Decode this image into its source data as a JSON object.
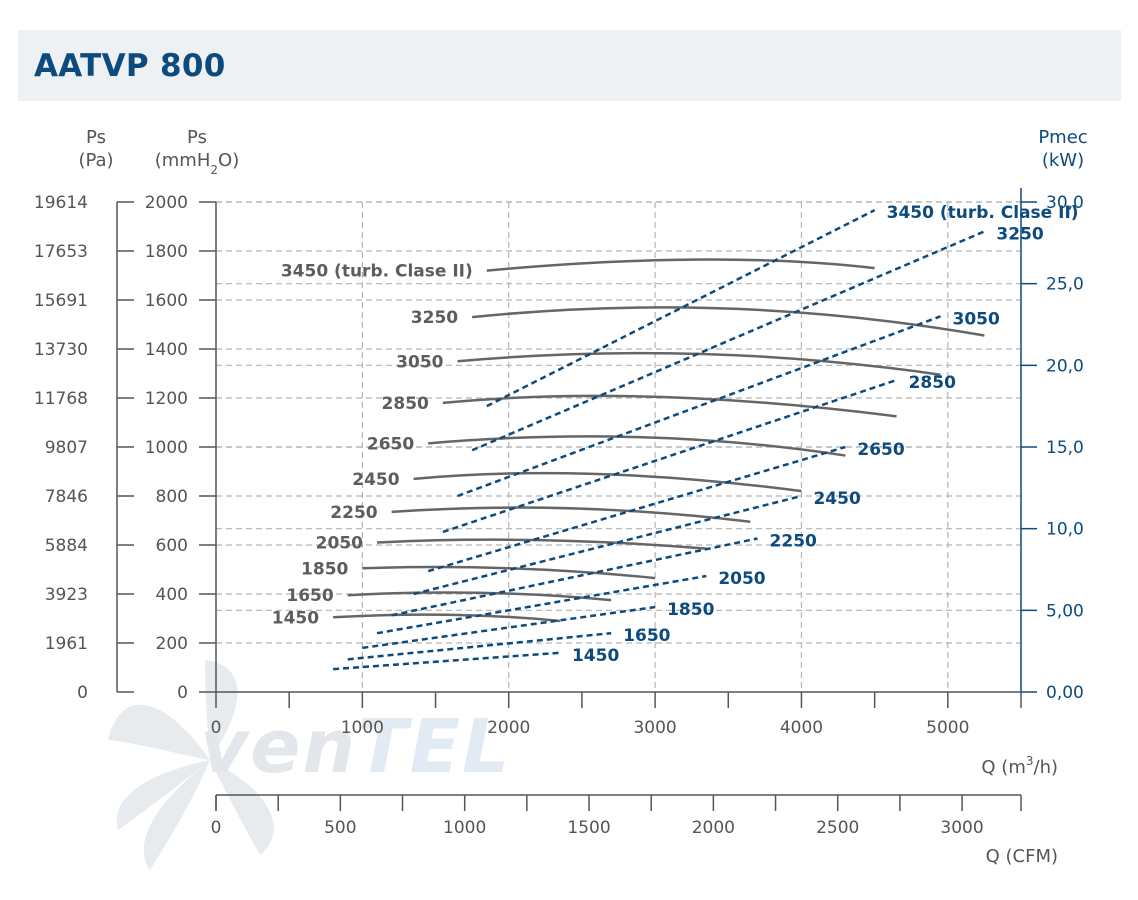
{
  "header": {
    "title": "AATVP 800"
  },
  "watermark": {
    "logo_text": "venTEL"
  },
  "colors": {
    "pressure_curve": "#666666",
    "power_curve": "#0d4a7d",
    "grid": "#b4b4b4",
    "header_bg": "#eef1f4"
  },
  "chart_data": {
    "type": "line",
    "title": "AATVP 800",
    "xlabel": "Q (m3/h)",
    "x_secondary_label": "Q (CFM)",
    "xlim": [
      0,
      5500
    ],
    "x_ticks": [
      "0",
      "1000",
      "2000",
      "3000",
      "4000",
      "5000"
    ],
    "x_secondary_lim": [
      0,
      3237
    ],
    "x_secondary_ticks": [
      "0",
      "500",
      "1000",
      "1500",
      "2000",
      "2500",
      "3000"
    ],
    "ylabel_pa": {
      "name": "Ps",
      "unit": "(Pa)"
    },
    "ylabel_mmH2O": {
      "name": "Ps",
      "unit_pre": "(mmH",
      "unit_sub": "2",
      "unit_post": "O)"
    },
    "ylabel_right": {
      "name": "Pmec",
      "unit": "(kW)"
    },
    "ylim": [
      0,
      2000
    ],
    "y_ticks_pa": [
      "0",
      "1961",
      "3923",
      "5884",
      "7846",
      "9807",
      "11768",
      "13730",
      "15691",
      "17653",
      "19614"
    ],
    "y_ticks_mmH2O": [
      "0",
      "200",
      "400",
      "600",
      "800",
      "1000",
      "1200",
      "1400",
      "1600",
      "1800",
      "2000"
    ],
    "y2lim": [
      0,
      30
    ],
    "y_ticks_right": [
      "0,00",
      "5,00",
      "10,0",
      "15,0",
      "20,0",
      "25,0",
      "30,0"
    ],
    "grid": true,
    "pressure_curves": [
      {
        "name": "1450",
        "label": "1450",
        "x": [
          800,
          1600,
          2350
        ],
        "y": [
          305,
          315,
          290
        ]
      },
      {
        "name": "1650",
        "label": "1650",
        "x": [
          900,
          1800,
          2700
        ],
        "y": [
          395,
          405,
          375
        ]
      },
      {
        "name": "1850",
        "label": "1850",
        "x": [
          1000,
          2000,
          3000
        ],
        "y": [
          505,
          505,
          465
        ]
      },
      {
        "name": "2050",
        "label": "2050",
        "x": [
          1100,
          2200,
          3350
        ],
        "y": [
          610,
          620,
          585
        ]
      },
      {
        "name": "2250",
        "label": "2250",
        "x": [
          1200,
          2400,
          3650
        ],
        "y": [
          735,
          750,
          695
        ]
      },
      {
        "name": "2450",
        "label": "2450",
        "x": [
          1350,
          2600,
          4000
        ],
        "y": [
          870,
          890,
          820
        ]
      },
      {
        "name": "2650",
        "label": "2650",
        "x": [
          1450,
          2900,
          4300
        ],
        "y": [
          1015,
          1040,
          965
        ]
      },
      {
        "name": "2850",
        "label": "2850",
        "x": [
          1550,
          3000,
          4650
        ],
        "y": [
          1180,
          1205,
          1125
        ]
      },
      {
        "name": "3050",
        "label": "3050",
        "x": [
          1650,
          3300,
          4950
        ],
        "y": [
          1350,
          1380,
          1295
        ]
      },
      {
        "name": "3250",
        "label": "3250",
        "x": [
          1750,
          3500,
          5250
        ],
        "y": [
          1530,
          1565,
          1455
        ]
      },
      {
        "name": "3450 (turb. Clase II)",
        "label": "3450 (turb. Clase II)",
        "x": [
          1850,
          3300,
          4500
        ],
        "y": [
          1720,
          1765,
          1730
        ]
      }
    ],
    "power_curves": [
      {
        "name": "1450",
        "label": "1450",
        "x": [
          800,
          2350
        ],
        "y": [
          1.4,
          2.4
        ]
      },
      {
        "name": "1650",
        "label": "1650",
        "x": [
          900,
          2700
        ],
        "y": [
          2.0,
          3.6
        ]
      },
      {
        "name": "1850",
        "label": "1850",
        "x": [
          1000,
          3000
        ],
        "y": [
          2.7,
          5.2
        ]
      },
      {
        "name": "2050",
        "label": "2050",
        "x": [
          1100,
          3350
        ],
        "y": [
          3.6,
          7.1
        ]
      },
      {
        "name": "2250",
        "label": "2250",
        "x": [
          1200,
          3700
        ],
        "y": [
          4.7,
          9.4
        ]
      },
      {
        "name": "2450",
        "label": "2450",
        "x": [
          1350,
          4000
        ],
        "y": [
          6.0,
          12.0
        ]
      },
      {
        "name": "2650",
        "label": "2650",
        "x": [
          1450,
          4300
        ],
        "y": [
          7.4,
          15.0
        ]
      },
      {
        "name": "2850",
        "label": "2850",
        "x": [
          1550,
          4650
        ],
        "y": [
          9.8,
          19.1
        ]
      },
      {
        "name": "3050",
        "label": "3050",
        "x": [
          1650,
          4950
        ],
        "y": [
          12.0,
          23.0
        ]
      },
      {
        "name": "3250",
        "label": "3250",
        "x": [
          1750,
          5250
        ],
        "y": [
          14.8,
          28.2
        ]
      },
      {
        "name": "3450 (turb. Clase II)",
        "label": "3450 (turb. Clase II)",
        "x": [
          1850,
          4500
        ],
        "y": [
          17.5,
          29.5
        ]
      }
    ]
  }
}
